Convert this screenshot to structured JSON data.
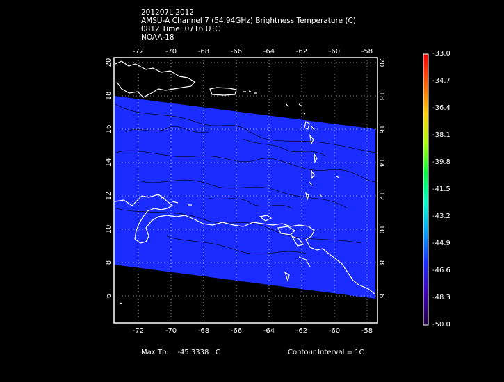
{
  "header": {
    "line1": "201207L 2012",
    "line2": "AMSU-A Channel 7 (54.94GHz) Brightness Temperature (C)",
    "line3": "0812 Time: 0716 UTC",
    "line4": "NOAA-18"
  },
  "map": {
    "lon_ticks": [
      "-72",
      "-70",
      "-68",
      "-66",
      "-64",
      "-62",
      "-60",
      "-58"
    ],
    "lat_ticks": [
      "20",
      "18",
      "16",
      "14",
      "12",
      "10",
      "8",
      "6"
    ],
    "lon_range": [
      -73.5,
      -57.5
    ],
    "lat_range": [
      4.5,
      20.5
    ],
    "swath_color": "#1a2cff",
    "background_color": "#000000",
    "coast_color": "#ffffff",
    "grid": "dotted"
  },
  "colorbar": {
    "labels": [
      "-33.0",
      "-34.7",
      "-36.4",
      "-38.1",
      "-39.8",
      "-41.5",
      "-43.2",
      "-44.9",
      "-46.6",
      "-48.3",
      "-50.0"
    ]
  },
  "footer": {
    "max_label": "Max Tb:",
    "max_value": "-45.3338",
    "max_unit": "C",
    "contour": "Contour Interval = 1C"
  }
}
